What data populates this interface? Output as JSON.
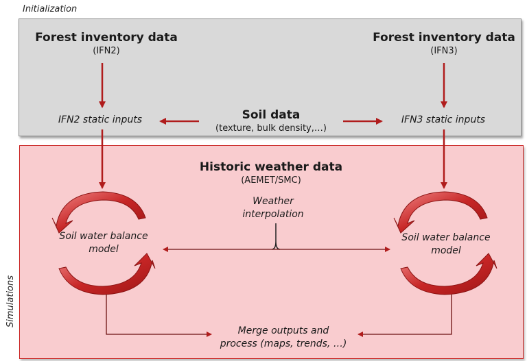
{
  "sections": {
    "initialization_label": "Initialization",
    "simulations_label": "Simulations"
  },
  "forest_left": {
    "title": "Forest inventory data",
    "source": "(IFN2)",
    "static_inputs": "IFN2 static inputs"
  },
  "forest_right": {
    "title": "Forest inventory data",
    "source": "(IFN3)",
    "static_inputs": "IFN3 static inputs"
  },
  "soil": {
    "title": "Soil data",
    "detail": "(texture, bulk density,…)"
  },
  "weather": {
    "title": "Historic weather data",
    "source": "(AEMET/SMC)",
    "interpolation_line1": "Weather",
    "interpolation_line2": "interpolation"
  },
  "models": {
    "line1": "Soil water balance",
    "line2": "model"
  },
  "merge": {
    "line1": "Merge outputs and",
    "line2": "process (maps, trends, …)"
  },
  "colors": {
    "arrow": "#b01c1c",
    "init_fill": "#d9d9d9",
    "sim_fill": "#f9cccf",
    "sim_border": "#c9201f"
  }
}
